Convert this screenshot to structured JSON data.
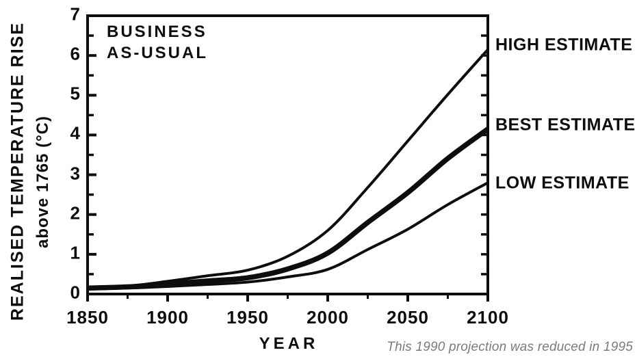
{
  "figure": {
    "scenario_label_line1": "BUSINESS",
    "scenario_label_line2": "AS-USUAL",
    "y_axis_title_line1": "REALISED TEMPERATURE RISE",
    "y_axis_title_line2": "above 1765 (°C)",
    "x_axis_title": "YEAR",
    "annotation": "This 1990 projection was reduced in 1995",
    "colors": {
      "ink": "#0d0d0d",
      "annotation_gray": "#7b7b7b",
      "background": "#ffffff"
    }
  },
  "chart_data": {
    "type": "line",
    "title": "BUSINESS AS-USUAL",
    "xlabel": "YEAR",
    "ylabel": "REALISED TEMPERATURE RISE above 1765 (°C)",
    "xlim": [
      1850,
      2100
    ],
    "ylim": [
      0,
      7
    ],
    "grid": false,
    "legend_position": "right-outside",
    "x_major_ticks": [
      1850,
      1900,
      1950,
      2000,
      2050,
      2100
    ],
    "x_minor_tick_step": 25,
    "y_major_ticks": [
      0,
      1,
      2,
      3,
      4,
      5,
      6,
      7
    ],
    "y_minor_tick_step": 0.5,
    "x": [
      1850,
      1875,
      1900,
      1925,
      1950,
      1975,
      2000,
      2025,
      2050,
      2075,
      2100
    ],
    "series": [
      {
        "name": "HIGH ESTIMATE",
        "values": [
          0.15,
          0.2,
          0.32,
          0.46,
          0.6,
          0.95,
          1.6,
          2.68,
          3.85,
          5.02,
          6.15
        ],
        "stroke_width": 4,
        "label_y": 6.26
      },
      {
        "name": "BEST ESTIMATE",
        "values": [
          0.15,
          0.18,
          0.25,
          0.33,
          0.41,
          0.63,
          1.03,
          1.8,
          2.55,
          3.41,
          4.15
        ],
        "stroke_width": 7.5,
        "label_y": 4.25
      },
      {
        "name": "LOW ESTIMATE",
        "values": [
          0.13,
          0.15,
          0.19,
          0.24,
          0.3,
          0.43,
          0.62,
          1.12,
          1.63,
          2.25,
          2.8
        ],
        "stroke_width": 4,
        "label_y": 2.78
      }
    ]
  }
}
